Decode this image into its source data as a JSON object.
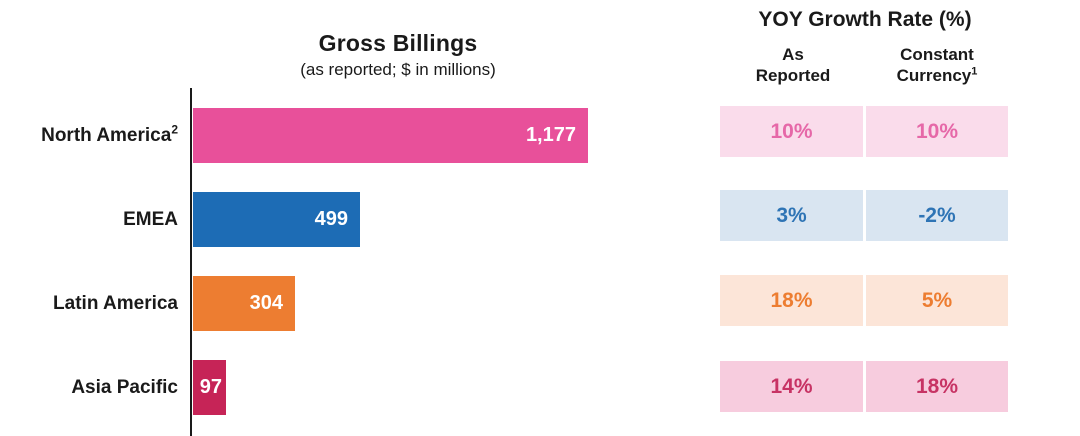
{
  "left_chart": {
    "title": "Gross Billings",
    "subtitle": "(as reported; $ in millions)",
    "rows": [
      {
        "label": "North America",
        "label_sup": "2",
        "value_label": "1,177",
        "value": 1177,
        "bar_color": "#E8509A"
      },
      {
        "label": "EMEA",
        "label_sup": "",
        "value_label": "499",
        "value": 499,
        "bar_color": "#1D6CB5"
      },
      {
        "label": "Latin America",
        "label_sup": "",
        "value_label": "304",
        "value": 304,
        "bar_color": "#ED7D31"
      },
      {
        "label": "Asia Pacific",
        "label_sup": "",
        "value_label": "97",
        "value": 97,
        "bar_color": "#C62457"
      }
    ]
  },
  "right_table": {
    "title": "YOY Growth Rate (%)",
    "col1_header_line1": "As",
    "col1_header_line2": "Reported",
    "col2_header_line1": "Constant",
    "col2_header_line2": "Currency",
    "col2_header_sup": "1",
    "rows": [
      {
        "as_reported": "10%",
        "constant_currency": "10%",
        "bg": "#FADCEB",
        "fg": "#E668A8"
      },
      {
        "as_reported": "3%",
        "constant_currency": "-2%",
        "bg": "#D9E5F1",
        "fg": "#2E74B5"
      },
      {
        "as_reported": "18%",
        "constant_currency": "5%",
        "bg": "#FCE5D8",
        "fg": "#ED7D31"
      },
      {
        "as_reported": "14%",
        "constant_currency": "18%",
        "bg": "#F7CCDE",
        "fg": "#C73364"
      }
    ]
  },
  "chart_data": {
    "type": "bar",
    "orientation": "horizontal",
    "title": "Gross Billings",
    "subtitle": "(as reported; $ in millions)",
    "categories": [
      "North America",
      "EMEA",
      "Latin America",
      "Asia Pacific"
    ],
    "values": [
      1177,
      499,
      304,
      97
    ],
    "data_labels": [
      "1,177",
      "499",
      "304",
      "97"
    ],
    "bar_colors": [
      "#E8509A",
      "#1D6CB5",
      "#ED7D31",
      "#C62457"
    ],
    "xlim": [
      0,
      1250
    ],
    "grid": false,
    "legend": "none",
    "companion_table": {
      "title": "YOY Growth Rate (%)",
      "columns": [
        "As Reported",
        "Constant Currency"
      ],
      "rows_pct": [
        [
          10,
          10
        ],
        [
          3,
          -2
        ],
        [
          18,
          5
        ],
        [
          14,
          18
        ]
      ]
    }
  }
}
